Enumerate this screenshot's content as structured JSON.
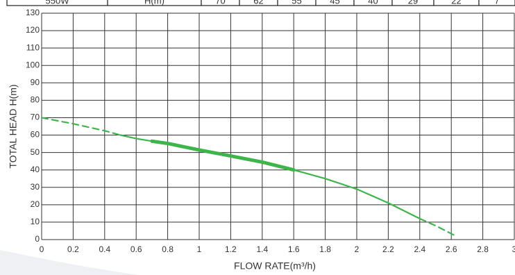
{
  "table": {
    "cells": [
      "550W",
      "H(m)",
      "70",
      "62",
      "55",
      "45",
      "40",
      "29",
      "22",
      "7"
    ]
  },
  "chart_data": {
    "type": "line",
    "xlabel": "FLOW RATE(m³/h)",
    "ylabel": "TOTAL HEAD H(m)",
    "xlim": [
      0,
      3
    ],
    "ylim": [
      0,
      130
    ],
    "xticks": [
      0,
      0.2,
      0.4,
      0.6,
      0.8,
      1,
      1.2,
      1.4,
      1.6,
      1.8,
      2,
      2.2,
      2.4,
      2.6,
      2.8,
      3
    ],
    "yticks": [
      0,
      10,
      20,
      30,
      40,
      50,
      60,
      70,
      80,
      90,
      100,
      110,
      120,
      130
    ],
    "grid": true,
    "series": [
      {
        "color": "#3db54a",
        "dashed": true,
        "x": [
          0,
          0.2,
          0.4,
          0.5
        ],
        "values": [
          70,
          66.5,
          62.5,
          60
        ]
      },
      {
        "color": "#3db54a",
        "dashed": false,
        "x": [
          0.5,
          0.6,
          0.8,
          1,
          1.2,
          1.4,
          1.6,
          1.8,
          2,
          2.2,
          2.4
        ],
        "values": [
          60,
          58,
          55,
          51.5,
          48,
          44.5,
          40,
          35,
          29,
          21,
          12
        ]
      },
      {
        "color": "#3db54a",
        "dashed": true,
        "x": [
          2.4,
          2.5,
          2.63
        ],
        "values": [
          12,
          8,
          2
        ]
      },
      {
        "color": "#3db54a",
        "dashed": false,
        "thick": true,
        "x": [
          0.7,
          0.8,
          1,
          1.2,
          1.4,
          1.6
        ],
        "values": [
          56.5,
          55.2,
          51.5,
          48,
          44.5,
          40
        ]
      }
    ]
  }
}
